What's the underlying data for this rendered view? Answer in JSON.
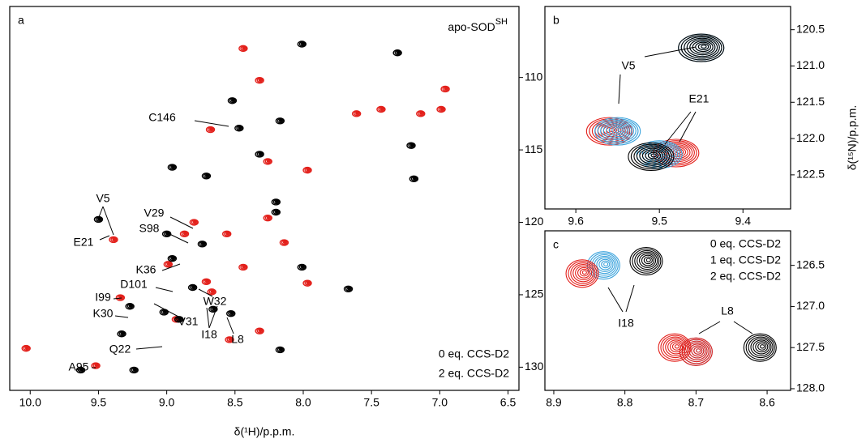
{
  "chart_data": [
    {
      "type": "scatter",
      "panel": "a",
      "title": "apo-SOD",
      "title_superscript": "SH",
      "x_label": "δ(¹H)/p.p.m.",
      "xlim": [
        10.15,
        6.42
      ],
      "ylim": [
        131.6,
        105.1
      ],
      "xticks": [
        {
          "value": 10,
          "label": "10.0"
        },
        9.5,
        {
          "value": 9,
          "label": "9.0"
        },
        8.5,
        {
          "value": 8,
          "label": "8.0"
        },
        7.5,
        {
          "value": 7,
          "label": "7.0"
        },
        6.5
      ],
      "yticks": [
        110,
        115,
        120,
        125,
        130
      ],
      "legend": "lower right",
      "annotations": [
        "C146",
        "V5",
        "E21",
        "V29",
        "S98",
        "K36",
        "D101",
        "I99",
        "K30",
        "V31",
        "I18",
        "W32",
        "L8",
        "Q22",
        "A95"
      ],
      "series": [
        {
          "name": "2 eq. CCS-D2",
          "color": "#e3201b",
          "x": [
            10.03,
            9.39,
            9.52,
            9.34,
            8.99,
            8.87,
            8.71,
            8.44,
            8.32,
            8.26,
            8.44,
            8.14,
            8.56,
            7.61,
            7.43,
            7.14,
            6.96,
            6.99,
            8.68,
            7.97,
            8.8,
            8.67,
            8.32,
            8.54,
            8.93,
            7.97,
            8.26
          ],
          "y": [
            128.7,
            121.2,
            129.9,
            125.2,
            122.9,
            120.8,
            124.1,
            108.0,
            110.2,
            119.7,
            123.1,
            121.4,
            120.8,
            112.5,
            112.2,
            112.5,
            110.8,
            112.2,
            113.6,
            124.2,
            120.0,
            124.8,
            127.5,
            128.1,
            126.7,
            116.4,
            115.8
          ]
        },
        {
          "name": "0 eq. CCS-D2",
          "color": "#000000",
          "x": [
            9.5,
            8.47,
            8.52,
            7.31,
            7.21,
            7.19,
            8.96,
            8.71,
            8.2,
            9.0,
            8.74,
            8.96,
            9.27,
            9.33,
            9.02,
            8.81,
            8.53,
            9.24,
            8.17,
            9.63,
            8.2,
            8.66,
            8.32,
            8.01,
            8.01,
            7.67,
            8.91,
            8.17
          ],
          "y": [
            119.8,
            113.5,
            111.6,
            108.3,
            114.7,
            117.0,
            116.2,
            116.8,
            118.6,
            120.8,
            121.5,
            122.5,
            125.8,
            127.7,
            126.2,
            124.5,
            126.3,
            130.2,
            128.8,
            130.2,
            119.3,
            126.0,
            115.3,
            107.7,
            123.1,
            124.6,
            126.7,
            113.0
          ]
        }
      ]
    },
    {
      "type": "scatter",
      "panel": "b",
      "y_label": "δ(¹⁵N)/p.p.m.",
      "xlim": [
        9.637,
        9.343
      ],
      "ylim": [
        122.97,
        120.18
      ],
      "xticks": [
        9.6,
        9.5,
        9.4
      ],
      "yticks": [
        120.5,
        {
          "value": 121,
          "label": "121.0"
        },
        121.5,
        {
          "value": 122,
          "label": "122.0"
        },
        122.5
      ],
      "annotations": [
        "V5",
        "E21"
      ],
      "series": [
        {
          "color": "#e3201b",
          "x": [
            9.56,
            9.48
          ],
          "y": [
            121.9,
            122.2
          ]
        },
        {
          "color": "#3ba3dc",
          "x": [
            9.55,
            9.45,
            9.5
          ],
          "y": [
            121.9,
            120.75,
            122.22
          ]
        },
        {
          "color": "#000000",
          "x": [
            9.45,
            9.51
          ],
          "y": [
            120.75,
            122.25
          ]
        }
      ]
    },
    {
      "type": "scatter",
      "panel": "c",
      "xlim": [
        8.9125,
        8.567
      ],
      "ylim": [
        128.02,
        126.08
      ],
      "xticks": [
        8.9,
        8.8,
        8.7,
        8.6
      ],
      "yticks": [
        126.5,
        {
          "value": 127,
          "label": "127.0"
        },
        127.5,
        {
          "value": 128,
          "label": "128.0"
        }
      ],
      "legend": "upper right",
      "annotations": [
        "I18",
        "L8"
      ],
      "series": [
        {
          "name": "0 eq. CCS-D2",
          "color": "#000000",
          "x": [
            8.77,
            8.61
          ],
          "y": [
            126.45,
            127.5
          ]
        },
        {
          "name": "1 eq. CCS-D2",
          "color": "#3ba3dc",
          "x": [
            8.83,
            8.7
          ],
          "y": [
            126.5,
            127.55
          ]
        },
        {
          "name": "2 eq. CCS-D2",
          "color": "#e3201b",
          "x": [
            8.86,
            8.7,
            8.73
          ],
          "y": [
            126.6,
            127.55,
            127.5
          ]
        }
      ]
    }
  ]
}
